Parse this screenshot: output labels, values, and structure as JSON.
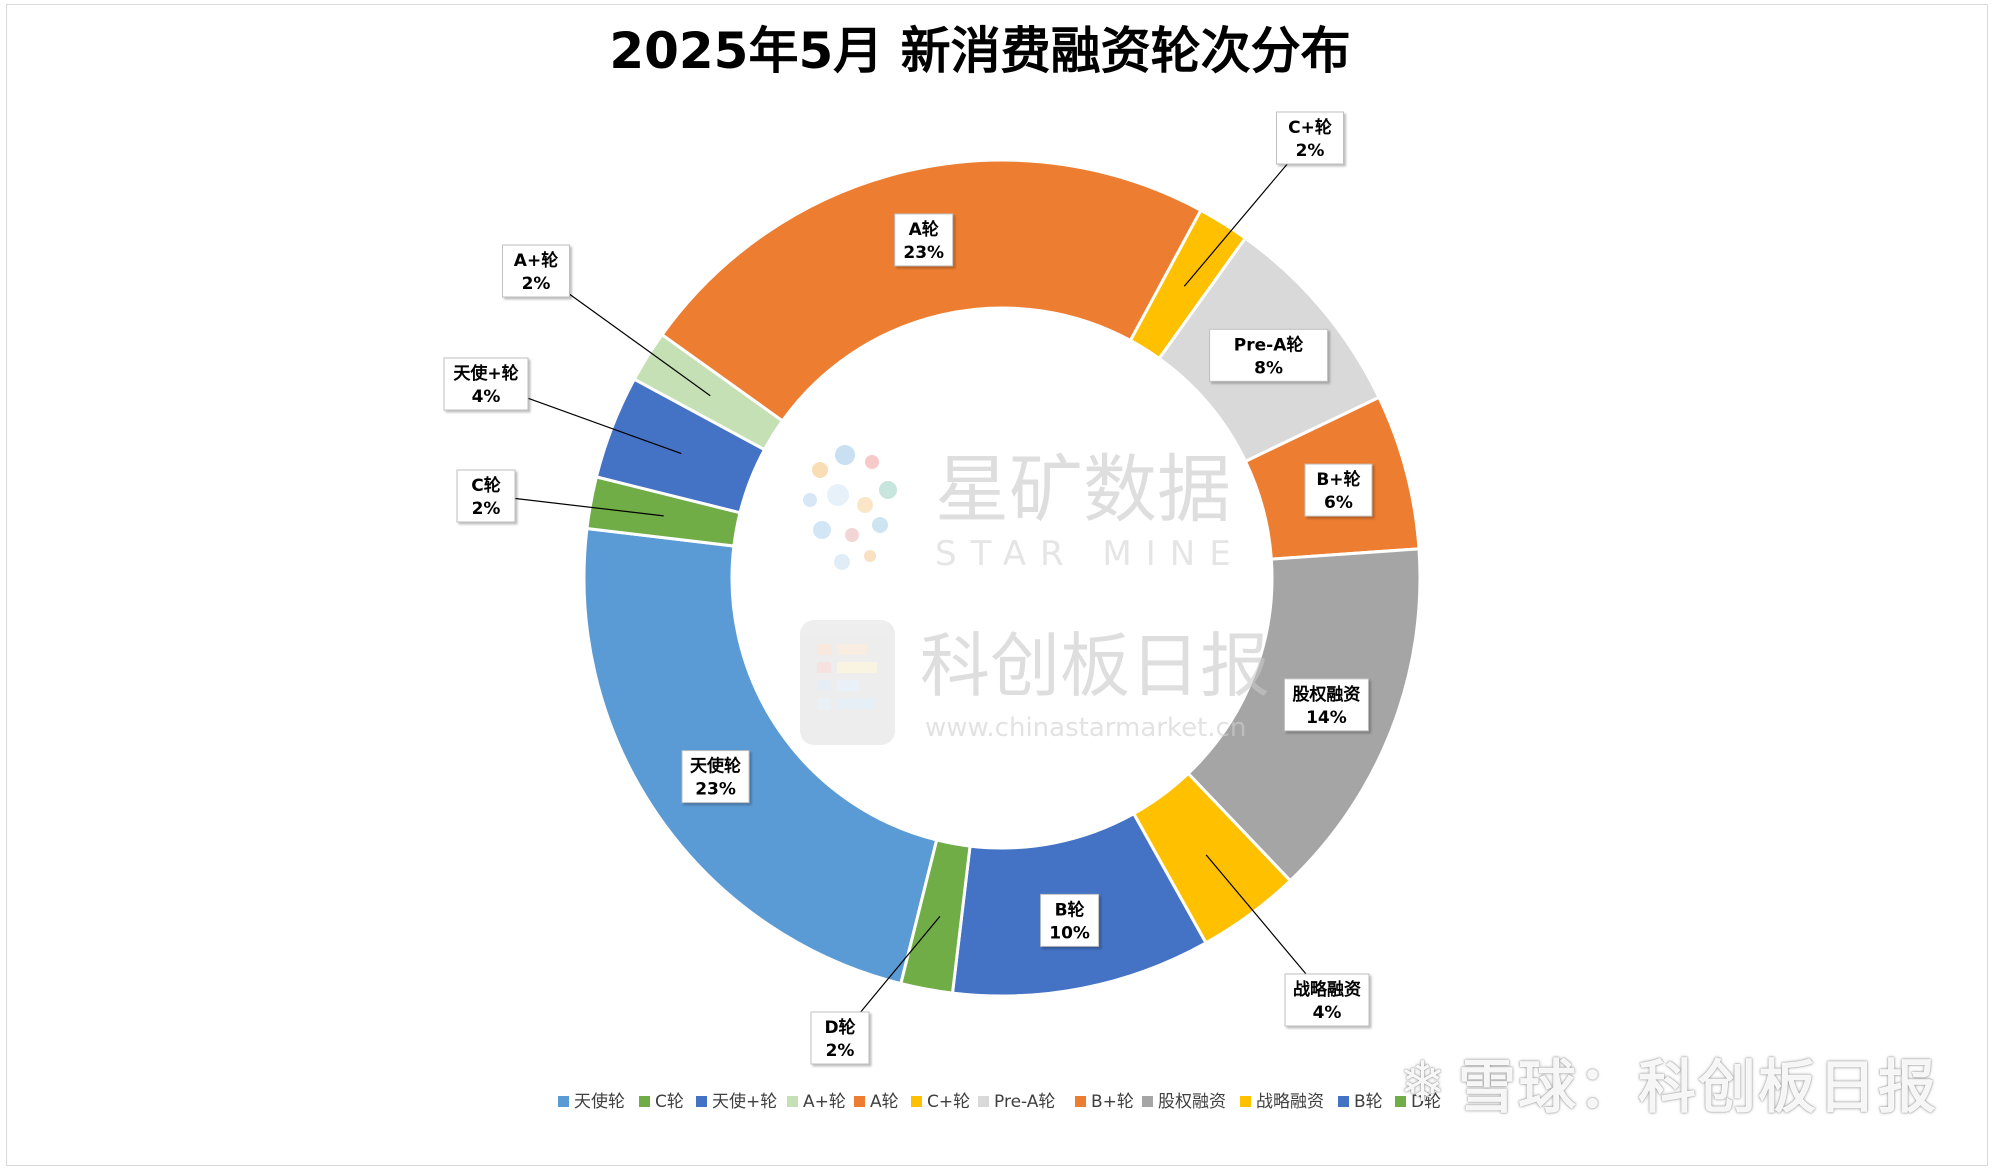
{
  "chart_data": {
    "type": "donut",
    "title": "2025年5月 新消费融资轮次分布",
    "series": [
      {
        "name": "天使轮",
        "value": 23,
        "label": "23%",
        "color": "#5b9bd5"
      },
      {
        "name": "C轮",
        "value": 2,
        "label": "2%",
        "color": "#70ad47"
      },
      {
        "name": "天使+轮",
        "value": 4,
        "label": "4%",
        "color": "#4472c4"
      },
      {
        "name": "A+轮",
        "value": 2,
        "label": "2%",
        "color": "#c5e0b4"
      },
      {
        "name": "A轮",
        "value": 23,
        "label": "23%",
        "color": "#ed7d31"
      },
      {
        "name": "C+轮",
        "value": 2,
        "label": "2%",
        "color": "#ffc000"
      },
      {
        "name": "Pre-A轮",
        "value": 8,
        "label": "8%",
        "color": "#d9d9d9"
      },
      {
        "name": "B+轮",
        "value": 6,
        "label": "6%",
        "color": "#ed7d31"
      },
      {
        "name": "股权融资",
        "value": 14,
        "label": "14%",
        "color": "#a5a5a5"
      },
      {
        "name": "战略融资",
        "value": 4,
        "label": "4%",
        "color": "#ffc000"
      },
      {
        "name": "B轮",
        "value": 10,
        "label": "10%",
        "color": "#4472c4"
      },
      {
        "name": "D轮",
        "value": 2,
        "label": "2%",
        "color": "#70ad47"
      }
    ],
    "legend_position": "bottom"
  },
  "watermarks": {
    "starmine_cn": "星矿数据",
    "starmine_en": "STAR MINE",
    "kcb_cn": "科创板日报",
    "kcb_url": "www.chinastarmarket.cn",
    "xueqiu": "雪球：科创板日报"
  }
}
